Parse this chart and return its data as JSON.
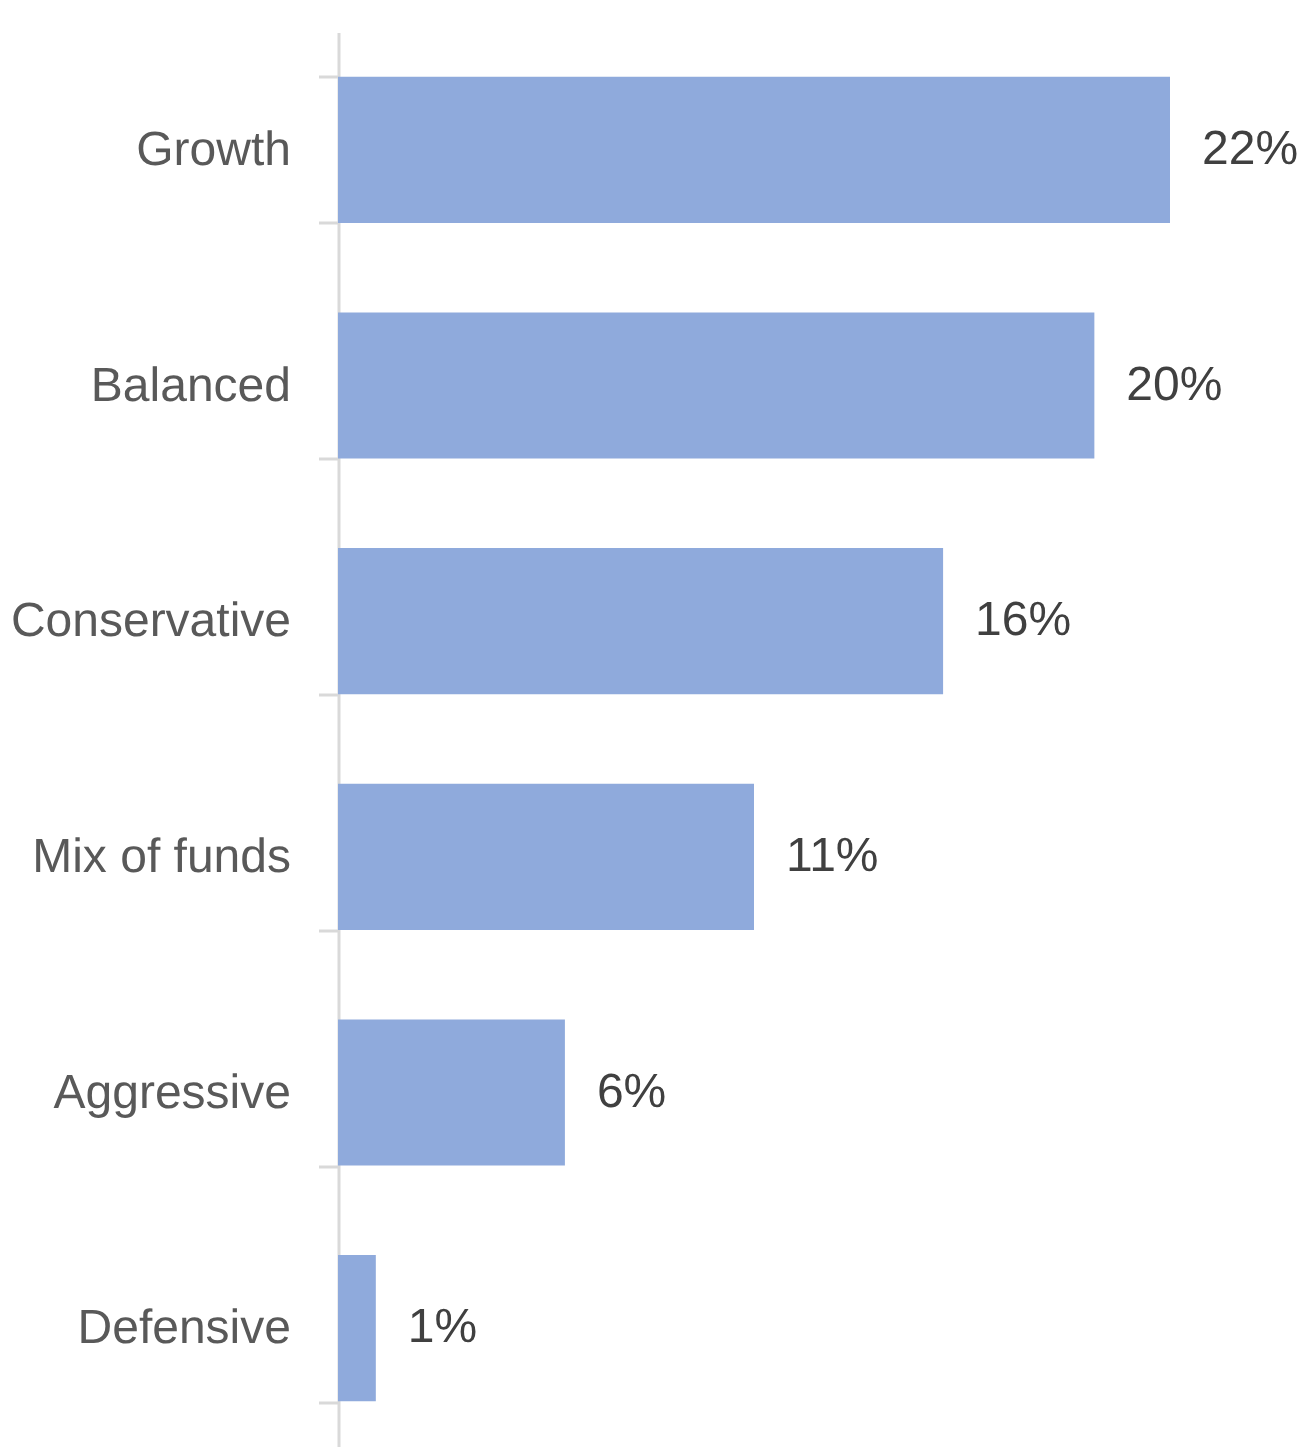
{
  "chart_data": {
    "type": "bar",
    "orientation": "horizontal",
    "categories": [
      "Growth",
      "Balanced",
      "Conservative",
      "Mix of funds",
      "Aggressive",
      "Defensive"
    ],
    "values": [
      22,
      20,
      16,
      11,
      6,
      1
    ],
    "color": "#8faadc",
    "data_labels": true,
    "value_labels": [
      "22%",
      "20%",
      "16%",
      "11%",
      "6%",
      "1%"
    ]
  }
}
